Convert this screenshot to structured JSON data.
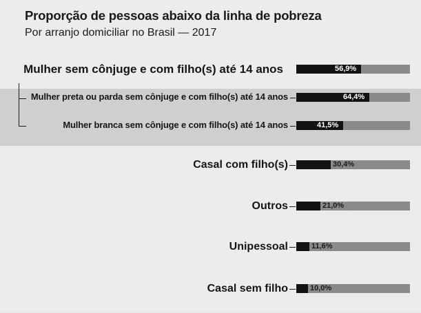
{
  "title": "Proporção de pessoas abaixo da linha de pobreza",
  "subtitle": "Por arranjo domiciliar no Brasil — 2017",
  "chart_data": {
    "type": "bar",
    "orientation": "horizontal",
    "title": "Proporção de pessoas abaixo da linha de pobreza",
    "subtitle": "Por arranjo domiciliar no Brasil — 2017",
    "categories": [
      "Mulher sem cônjuge e com filho(s) até 14 anos",
      "Mulher preta ou parda sem cônjuge e com filho(s) até 14 anos",
      "Mulher branca sem cônjuge e com filho(s) até 14 anos",
      "Casal com filho(s)",
      "Outros",
      "Unipessoal",
      "Casal sem filho"
    ],
    "values": [
      56.9,
      64.4,
      41.5,
      30.4,
      21.0,
      11.6,
      10.0
    ],
    "value_labels": [
      "56,9%",
      "64,4%",
      "41,5%",
      "30,4%",
      "21,0%",
      "11,6%",
      "10,0%"
    ],
    "xlim": [
      0,
      100
    ],
    "grid": false,
    "colors": {
      "bar": "#121212",
      "track": "#8a8a8a",
      "highlight_band": "#cfcfcf"
    }
  }
}
